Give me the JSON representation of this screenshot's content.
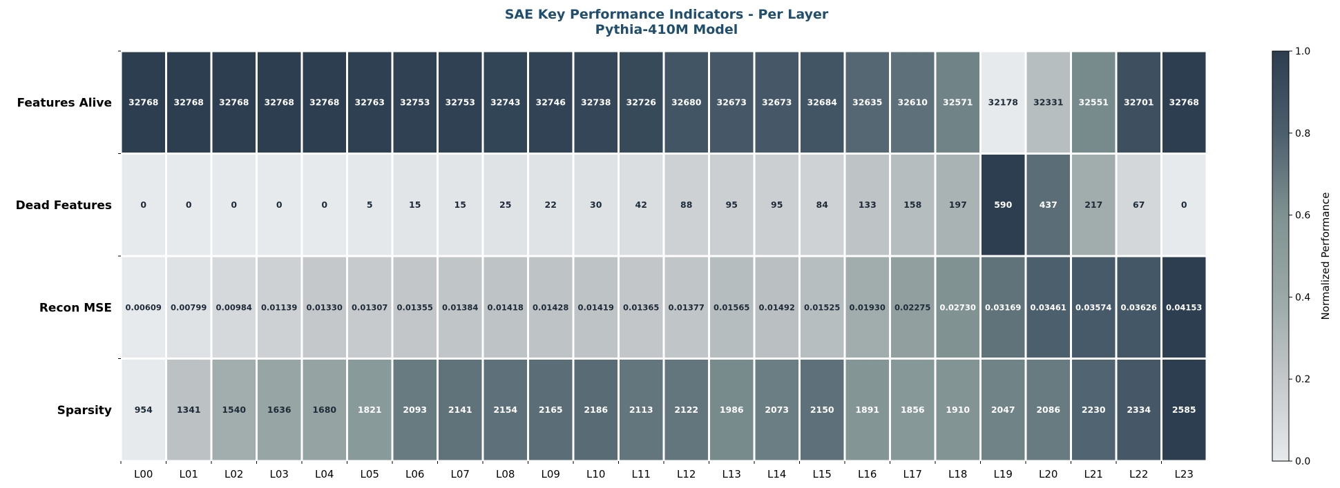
{
  "chart_data": {
    "type": "heatmap",
    "title": "SAE Key Performance Indicators - Per Layer",
    "subtitle": "Pythia-410M Model",
    "rows": [
      "Features Alive",
      "Dead Features",
      "Recon MSE",
      "Sparsity"
    ],
    "columns": [
      "L00",
      "L01",
      "L02",
      "L03",
      "L04",
      "L05",
      "L06",
      "L07",
      "L08",
      "L09",
      "L10",
      "L11",
      "L12",
      "L13",
      "L14",
      "L15",
      "L16",
      "L17",
      "L18",
      "L19",
      "L20",
      "L21",
      "L22",
      "L23"
    ],
    "values": [
      [
        "32768",
        "32768",
        "32768",
        "32768",
        "32768",
        "32763",
        "32753",
        "32753",
        "32743",
        "32746",
        "32738",
        "32726",
        "32680",
        "32673",
        "32673",
        "32684",
        "32635",
        "32610",
        "32571",
        "32178",
        "32331",
        "32551",
        "32701",
        "32768"
      ],
      [
        "0",
        "0",
        "0",
        "0",
        "0",
        "5",
        "15",
        "15",
        "25",
        "22",
        "30",
        "42",
        "88",
        "95",
        "95",
        "84",
        "133",
        "158",
        "197",
        "590",
        "437",
        "217",
        "67",
        "0"
      ],
      [
        "0.00609",
        "0.00799",
        "0.00984",
        "0.01139",
        "0.01330",
        "0.01307",
        "0.01355",
        "0.01384",
        "0.01418",
        "0.01428",
        "0.01419",
        "0.01365",
        "0.01377",
        "0.01565",
        "0.01492",
        "0.01525",
        "0.01930",
        "0.02275",
        "0.02730",
        "0.03169",
        "0.03461",
        "0.03574",
        "0.03626",
        "0.04153"
      ],
      [
        "954",
        "1341",
        "1540",
        "1636",
        "1680",
        "1821",
        "2093",
        "2141",
        "2154",
        "2165",
        "2186",
        "2113",
        "2122",
        "1986",
        "2073",
        "2150",
        "1891",
        "1856",
        "1910",
        "2047",
        "2086",
        "2230",
        "2334",
        "2585"
      ]
    ],
    "normalized": [
      [
        1.0,
        1.0,
        1.0,
        1.0,
        1.0,
        0.99,
        0.98,
        0.98,
        0.96,
        0.97,
        0.95,
        0.93,
        0.86,
        0.84,
        0.84,
        0.86,
        0.77,
        0.73,
        0.66,
        0.0,
        0.26,
        0.63,
        0.89,
        1.0
      ],
      [
        0.0,
        0.0,
        0.0,
        0.0,
        0.0,
        0.01,
        0.03,
        0.03,
        0.04,
        0.04,
        0.05,
        0.07,
        0.15,
        0.16,
        0.16,
        0.14,
        0.23,
        0.27,
        0.33,
        1.0,
        0.74,
        0.37,
        0.11,
        0.0
      ],
      [
        0.0,
        0.05,
        0.1,
        0.15,
        0.2,
        0.19,
        0.21,
        0.22,
        0.23,
        0.23,
        0.23,
        0.21,
        0.22,
        0.27,
        0.25,
        0.26,
        0.37,
        0.47,
        0.59,
        0.72,
        0.8,
        0.83,
        0.85,
        1.0
      ],
      [
        0.0,
        0.24,
        0.36,
        0.42,
        0.44,
        0.53,
        0.69,
        0.72,
        0.73,
        0.74,
        0.75,
        0.71,
        0.71,
        0.63,
        0.68,
        0.73,
        0.57,
        0.55,
        0.58,
        0.66,
        0.69,
        0.78,
        0.84,
        1.0
      ]
    ],
    "colorbar": {
      "label": "Normalized Performance",
      "range": [
        0.0,
        1.0
      ],
      "ticks": [
        "0.0",
        "0.2",
        "0.4",
        "0.6",
        "0.8",
        "1.0"
      ],
      "colors": [
        "#e6eaed",
        "#c4c8cb",
        "#9aa8a7",
        "#7f9291",
        "#4c5f6d",
        "#2c3e50"
      ]
    },
    "title_color": "#1f4e6e",
    "grid": false
  }
}
